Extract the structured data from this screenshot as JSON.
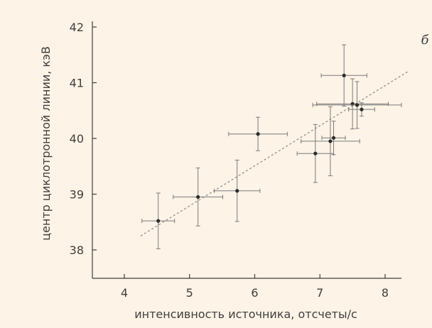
{
  "chart_data": {
    "type": "scatter",
    "panel_label": "б",
    "xlabel": "интенсивность источника, отсчеты/с",
    "ylabel": "центр циклотронной линии, кэВ",
    "xlim": [
      3.5,
      8.5
    ],
    "ylim": [
      37.5,
      42.0
    ],
    "xticks": [
      "4",
      "5",
      "6",
      "7",
      "8"
    ],
    "yticks": [
      "38",
      "39",
      "40",
      "41",
      "42"
    ],
    "grid": false,
    "colors": {
      "background": "#fdf3e6",
      "points": "#2b2b2b",
      "errorbars": "#7a7a7a",
      "fit": "#8a8a8a",
      "axes": "#3f3f3f"
    },
    "points": [
      {
        "x": 4.52,
        "y": 38.52,
        "xerr": 0.25,
        "yerr": 0.5
      },
      {
        "x": 5.13,
        "y": 38.95,
        "xerr": 0.38,
        "yerr": 0.52
      },
      {
        "x": 5.73,
        "y": 39.06,
        "xerr": 0.35,
        "yerr": 0.55
      },
      {
        "x": 6.05,
        "y": 40.08,
        "xerr": 0.45,
        "yerr": 0.3
      },
      {
        "x": 6.93,
        "y": 39.73,
        "xerr": 0.28,
        "yerr": 0.52
      },
      {
        "x": 7.16,
        "y": 39.95,
        "xerr": 0.45,
        "yerr": 0.62
      },
      {
        "x": 7.21,
        "y": 40.01,
        "xerr": 0.18,
        "yerr": 0.3
      },
      {
        "x": 7.37,
        "y": 41.13,
        "xerr": 0.35,
        "yerr": 0.55
      },
      {
        "x": 7.5,
        "y": 40.62,
        "xerr": 0.55,
        "yerr": 0.45
      },
      {
        "x": 7.57,
        "y": 40.6,
        "xerr": 0.68,
        "yerr": 0.42
      },
      {
        "x": 7.64,
        "y": 40.52,
        "xerr": 0.2,
        "yerr": 0.12
      }
    ],
    "fit_line": {
      "x": [
        4.25,
        8.35
      ],
      "y": [
        38.25,
        41.2
      ]
    }
  }
}
